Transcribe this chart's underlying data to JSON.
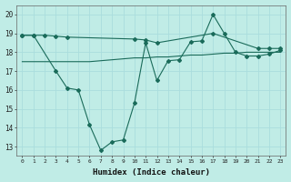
{
  "bg_color": "#c0ece6",
  "grid_color": "#aadddd",
  "line_color": "#1a6b5a",
  "line1_x": [
    0,
    1,
    2,
    3,
    4,
    10,
    11,
    12,
    17,
    21,
    22,
    23
  ],
  "line1_y": [
    18.9,
    18.9,
    18.9,
    18.85,
    18.8,
    18.7,
    18.65,
    18.5,
    19.0,
    18.2,
    18.2,
    18.2
  ],
  "line2_x": [
    0,
    1,
    2,
    3,
    4,
    5,
    6,
    7,
    8,
    9,
    10,
    11,
    12,
    13,
    14,
    15,
    16,
    17,
    18,
    19,
    20,
    21,
    22,
    23
  ],
  "line2_y": [
    17.5,
    17.5,
    17.5,
    17.5,
    17.5,
    17.5,
    17.5,
    17.55,
    17.6,
    17.65,
    17.7,
    17.7,
    17.75,
    17.75,
    17.8,
    17.85,
    17.85,
    17.9,
    17.95,
    17.95,
    18.0,
    18.0,
    18.0,
    18.0
  ],
  "line3_x": [
    0,
    1,
    3,
    4,
    5,
    6,
    7,
    8,
    9,
    10,
    11,
    12,
    13,
    14,
    15,
    16,
    17,
    18,
    19,
    20,
    21,
    22,
    23
  ],
  "line3_y": [
    18.9,
    18.9,
    17.0,
    16.1,
    16.0,
    14.15,
    12.8,
    13.25,
    13.35,
    15.3,
    18.5,
    16.5,
    17.55,
    17.6,
    18.55,
    18.6,
    20.0,
    19.0,
    18.0,
    17.8,
    17.8,
    17.9,
    18.1
  ],
  "xlabel": "Humidex (Indice chaleur)",
  "ylim": [
    12.5,
    20.5
  ],
  "xlim": [
    -0.5,
    23.5
  ],
  "yticks": [
    13,
    14,
    15,
    16,
    17,
    18,
    19,
    20
  ],
  "xticks": [
    0,
    1,
    2,
    3,
    4,
    5,
    6,
    7,
    8,
    9,
    10,
    11,
    12,
    13,
    14,
    15,
    16,
    17,
    18,
    19,
    20,
    21,
    22,
    23
  ]
}
